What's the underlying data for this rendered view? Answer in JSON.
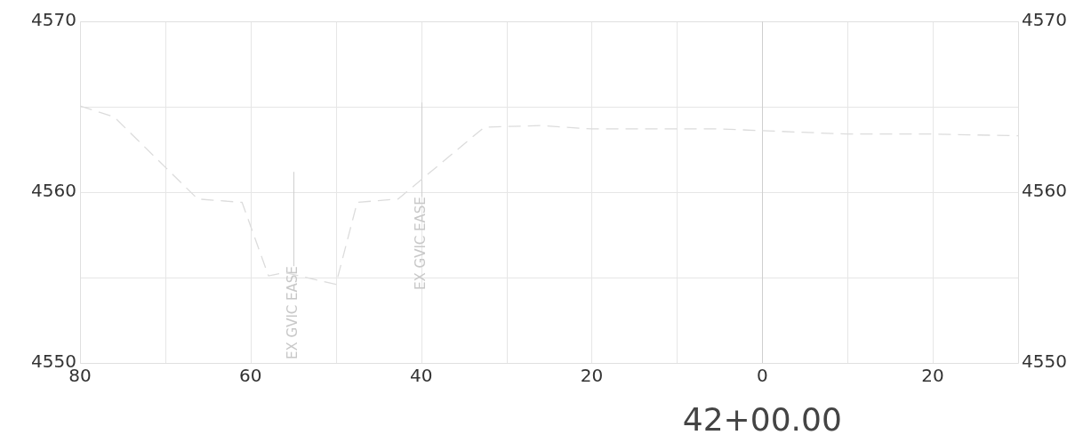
{
  "chart_data": {
    "type": "line",
    "xlabel": "42+00.00",
    "series": [
      {
        "color": "#dcdcdc",
        "x": [
          -80,
          -76,
          -66.2,
          -61,
          -57.9,
          -56,
          -50,
          -47.5,
          -42.7,
          -32.6,
          -26,
          -20,
          -5,
          0,
          10,
          20,
          30
        ],
        "values": [
          4565.05,
          4564.4,
          4559.6,
          4559.4,
          4555.1,
          4555.3,
          4554.6,
          4559.4,
          4559.6,
          4563.8,
          4563.9,
          4563.7,
          4563.7,
          4563.6,
          4563.4,
          4563.4,
          4563.3
        ]
      }
    ],
    "xlim": [
      -80,
      30
    ],
    "xticks": [
      {
        "value": -80,
        "label": "80"
      },
      {
        "value": -70,
        "label": null
      },
      {
        "value": -60,
        "label": "60"
      },
      {
        "value": -50,
        "label": null
      },
      {
        "value": -40,
        "label": "40"
      },
      {
        "value": -30,
        "label": null
      },
      {
        "value": -20,
        "label": "20"
      },
      {
        "value": -10,
        "label": null
      },
      0,
      {
        "value": 10,
        "label": null
      },
      {
        "value": 20,
        "label": "20"
      },
      {
        "value": 30,
        "label": null
      }
    ],
    "ylim": [
      4550,
      4570
    ],
    "yticks": [
      4550,
      {
        "value": 4555,
        "label": null
      },
      4560,
      {
        "value": 4565,
        "label": null
      },
      4570
    ],
    "y2lim": [
      4550,
      4570
    ],
    "y2ticks": [
      4550,
      {
        "value": 4555,
        "label": null
      },
      4560,
      {
        "value": 4565,
        "label": null
      },
      4570
    ],
    "ref_lines": [
      {
        "axis": "x",
        "value": 0,
        "color": "#cfcfcf"
      },
      {
        "axis": "x",
        "value": -55,
        "label": "EX GVIC EASE",
        "color": "#cfcfcf"
      },
      {
        "axis": "x",
        "value": -40,
        "label": "EX GVIC EASE",
        "color": "#cfcfcf"
      }
    ],
    "grid": true,
    "legend": false,
    "marker": "none",
    "line_style": "dashed"
  }
}
